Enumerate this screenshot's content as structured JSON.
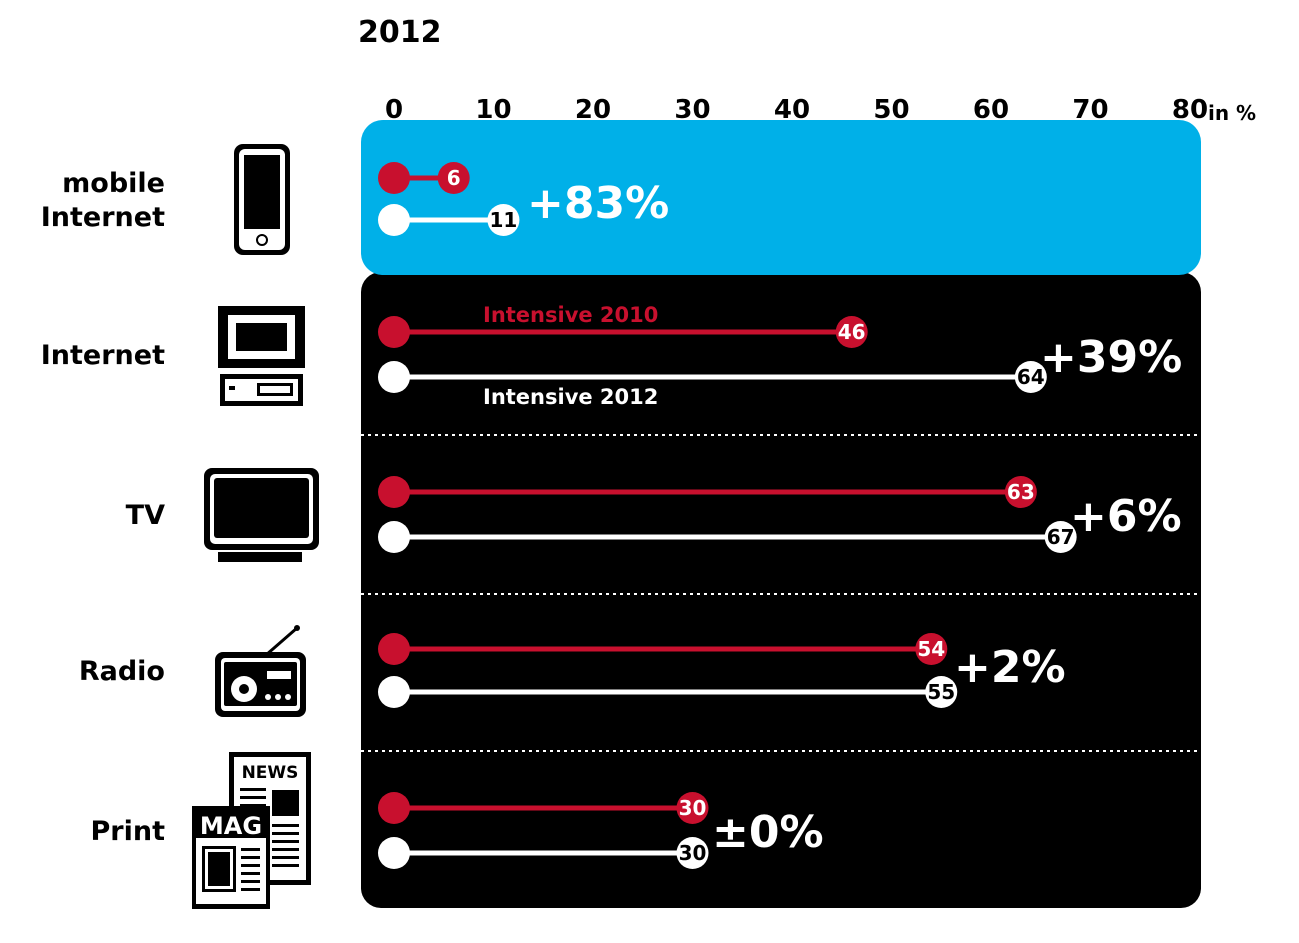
{
  "chart_data": {
    "type": "bar",
    "title": "2012",
    "axis_unit_label": "in %",
    "xlim": [
      0,
      80
    ],
    "ticks": [
      "0",
      "10",
      "20",
      "30",
      "40",
      "50",
      "60",
      "70",
      "80"
    ],
    "categories": [
      "mobile Internet",
      "Internet",
      "TV",
      "Radio",
      "Print"
    ],
    "category_lines": [
      [
        "mobile",
        "Internet"
      ],
      [
        "Internet"
      ],
      [
        "TV"
      ],
      [
        "Radio"
      ],
      [
        "Print"
      ]
    ],
    "series": [
      {
        "name": "Intensive 2010",
        "color": "#c8102e",
        "values": [
          6,
          46,
          63,
          54,
          30
        ]
      },
      {
        "name": "Intensive 2012",
        "color": "#ffffff",
        "values": [
          11,
          64,
          67,
          55,
          30
        ]
      }
    ],
    "change_labels": [
      "+83%",
      "+39%",
      "+6%",
      "+2%",
      "±0%"
    ],
    "icons": [
      "smartphone-icon",
      "desktop-computer-icon",
      "television-icon",
      "radio-icon",
      "newspaper-magazine-icon"
    ],
    "icon_texts": {
      "news": "NEWS",
      "mag": "MAG"
    },
    "colors": {
      "highlight_panel": "#00b0e8",
      "dark_panel": "#000000",
      "series_2010": "#c8102e",
      "series_2012": "#ffffff",
      "text": "#000000"
    }
  }
}
